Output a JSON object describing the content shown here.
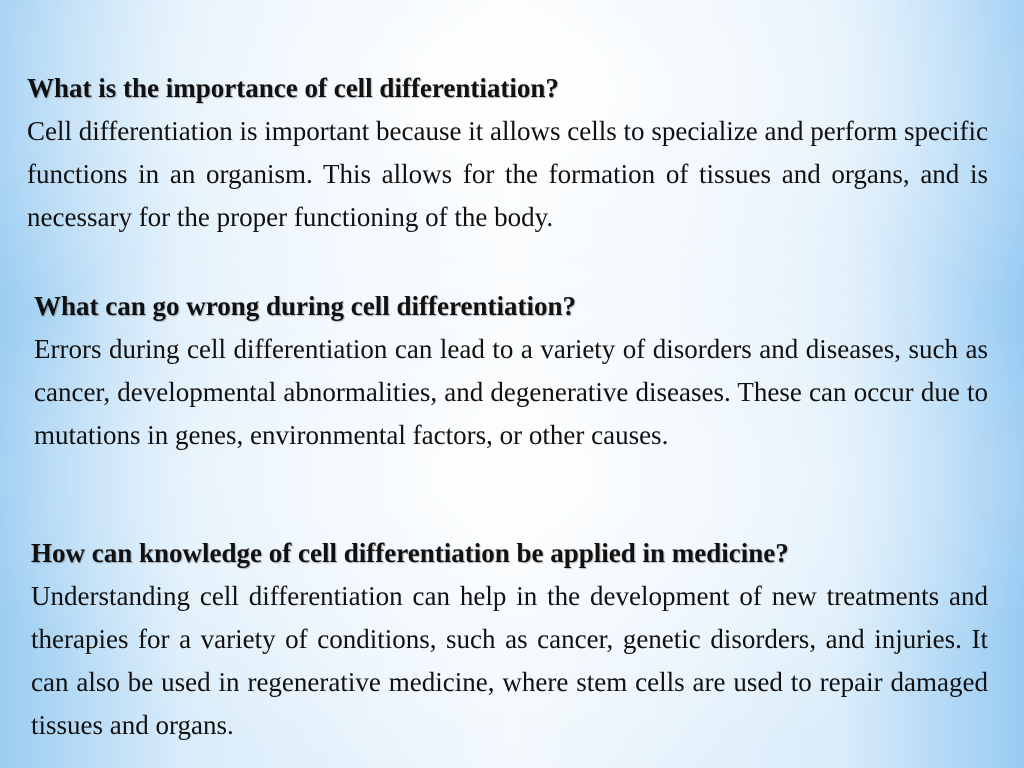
{
  "sections": [
    {
      "question": "What is the importance of cell differentiation?",
      "answer": "Cell differentiation is important because it allows cells to specialize and perform specific functions in an organism. This allows for the formation of tissues and organs, and is necessary for the proper functioning of the body."
    },
    {
      "question": "What can go wrong during cell differentiation?",
      "answer": "Errors during cell differentiation can lead to a variety of disorders and diseases, such as cancer, developmental abnormalities, and degenerative diseases. These can occur due to mutations in genes, environmental factors, or other causes."
    },
    {
      "question": "How can knowledge of cell differentiation be applied in medicine?",
      "answer": "Understanding cell differentiation can help in the development of new treatments and therapies for a variety of conditions, such as cancer, genetic disorders, and injuries. It can also be used in regenerative medicine, where stem cells are used to repair damaged tissues and organs."
    }
  ]
}
